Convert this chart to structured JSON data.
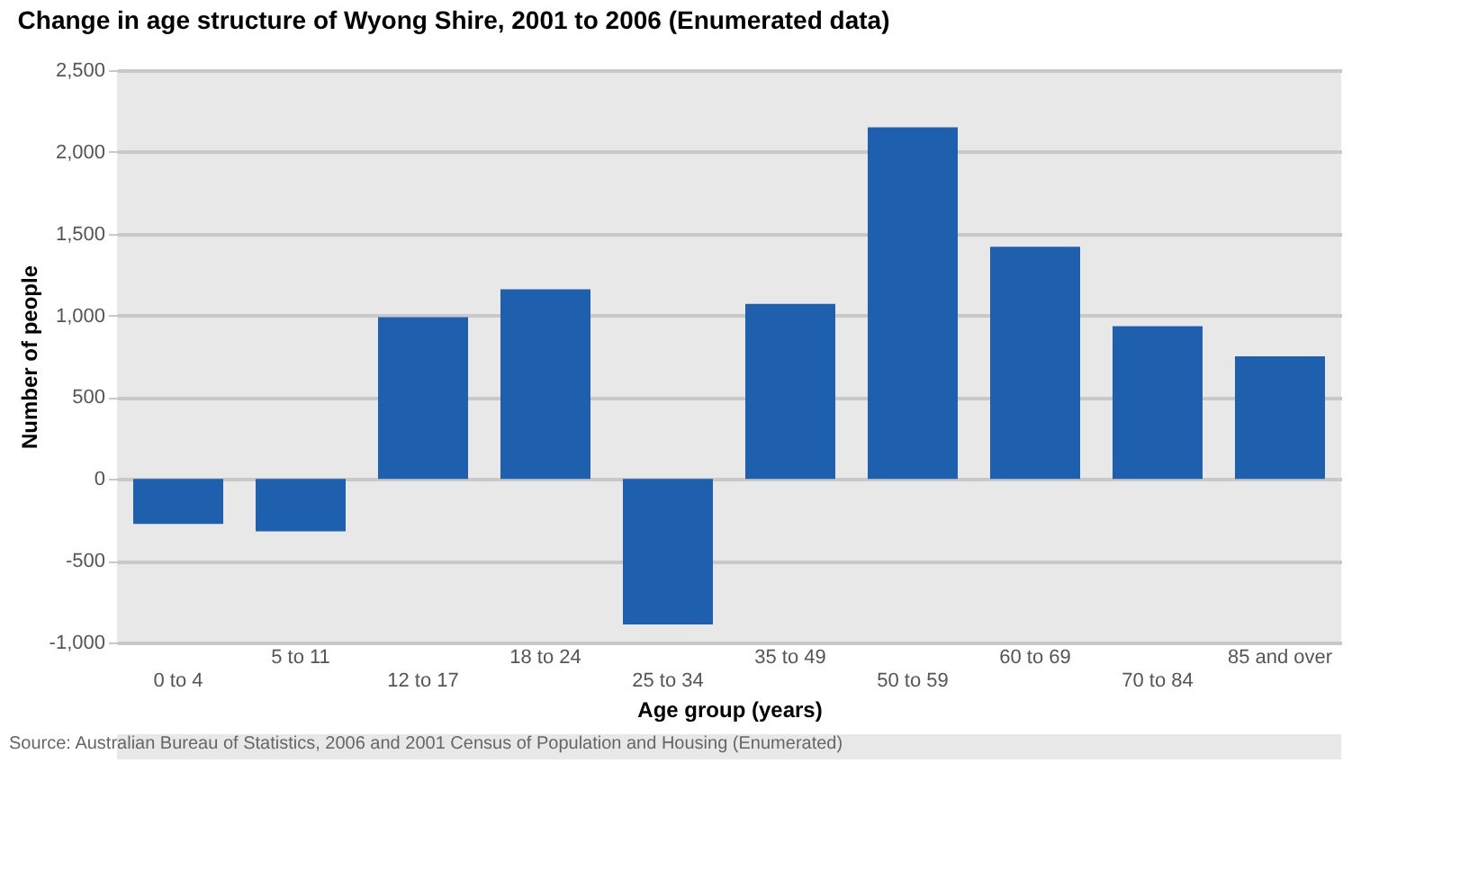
{
  "chart_data": {
    "type": "bar",
    "title": "Change in age structure of Wyong Shire, 2001 to 2006 (Enumerated data)",
    "xlabel": "Age group (years)",
    "ylabel": "Number of people",
    "categories": [
      "0 to 4",
      "5 to 11",
      "12 to 17",
      "18 to 24",
      "25 to 34",
      "35 to 49",
      "50 to 59",
      "60 to 69",
      "70 to 84",
      "85 and over"
    ],
    "values": [
      -275,
      -320,
      990,
      1160,
      -890,
      1070,
      2150,
      1420,
      935,
      750
    ],
    "color": "#1e5fae",
    "ylim": [
      -1000,
      2500
    ],
    "yticks": [
      {
        "value": -1000,
        "label": "-1,000"
      },
      {
        "value": -500,
        "label": "-500"
      },
      0,
      500,
      {
        "value": 1000,
        "label": "1,000"
      },
      {
        "value": 1500,
        "label": "1,500"
      },
      {
        "value": 2000,
        "label": "2,000"
      },
      {
        "value": 2500,
        "label": "2,500"
      }
    ],
    "grid": "y",
    "annotations": [
      "Source: Australian Bureau of Statistics, 2006 and 2001 Census of Population and Housing (Enumerated)"
    ]
  }
}
